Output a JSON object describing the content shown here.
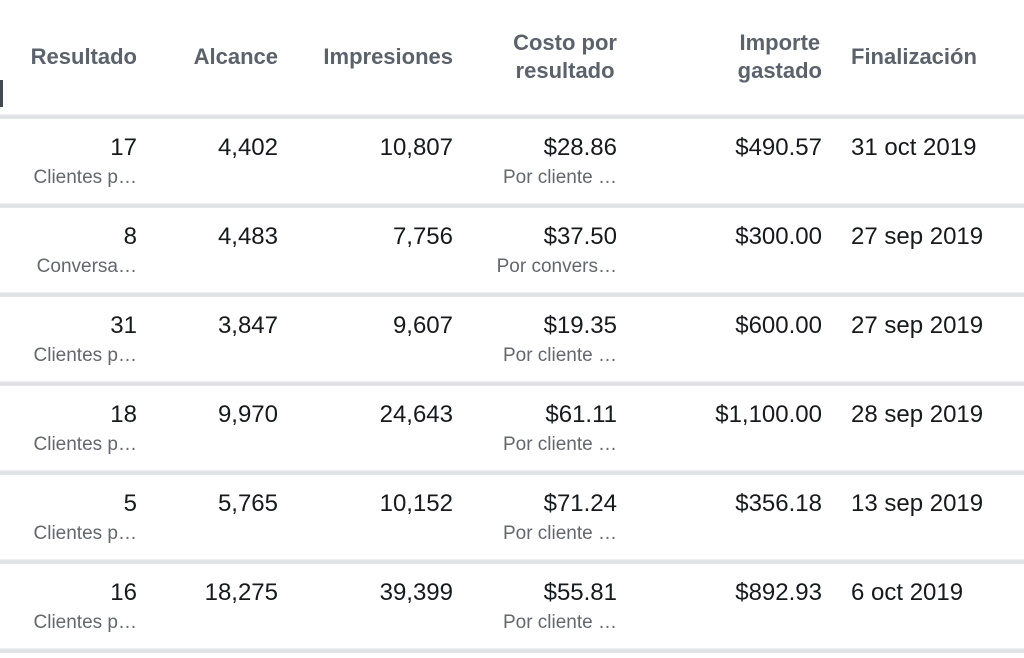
{
  "table": {
    "columns": [
      {
        "label": "Resultado"
      },
      {
        "label": "Alcance"
      },
      {
        "label": "Impresiones"
      },
      {
        "label": "Costo por\nresultado"
      },
      {
        "label": "Importe\ngastado"
      },
      {
        "label": "Finalización"
      }
    ],
    "rows": [
      {
        "resultado": "17",
        "resultado_tipo": "Clientes p…",
        "alcance": "4,402",
        "impresiones": "10,807",
        "costo": "$28.86",
        "costo_tipo": "Por cliente …",
        "importe": "$490.57",
        "finalizacion": "31 oct 2019"
      },
      {
        "resultado": "8",
        "resultado_tipo": "Conversa…",
        "alcance": "4,483",
        "impresiones": "7,756",
        "costo": "$37.50",
        "costo_tipo": "Por convers…",
        "importe": "$300.00",
        "finalizacion": "27 sep 2019"
      },
      {
        "resultado": "31",
        "resultado_tipo": "Clientes p…",
        "alcance": "3,847",
        "impresiones": "9,607",
        "costo": "$19.35",
        "costo_tipo": "Por cliente …",
        "importe": "$600.00",
        "finalizacion": "27 sep 2019"
      },
      {
        "resultado": "18",
        "resultado_tipo": "Clientes p…",
        "alcance": "9,970",
        "impresiones": "24,643",
        "costo": "$61.11",
        "costo_tipo": "Por cliente …",
        "importe": "$1,100.00",
        "finalizacion": "28 sep 2019"
      },
      {
        "resultado": "5",
        "resultado_tipo": "Clientes p…",
        "alcance": "5,765",
        "impresiones": "10,152",
        "costo": "$71.24",
        "costo_tipo": "Por cliente …",
        "importe": "$356.18",
        "finalizacion": "13 sep 2019"
      },
      {
        "resultado": "16",
        "resultado_tipo": "Clientes p…",
        "alcance": "18,275",
        "impresiones": "39,399",
        "costo": "$55.81",
        "costo_tipo": "Por cliente …",
        "importe": "$892.93",
        "finalizacion": "6 oct 2019"
      }
    ]
  },
  "colors": {
    "header_text": "#5b626b",
    "value_text": "#17191d",
    "secondary_text": "#63676e",
    "divider": "#e0e1e5",
    "background": "#ffffff"
  }
}
